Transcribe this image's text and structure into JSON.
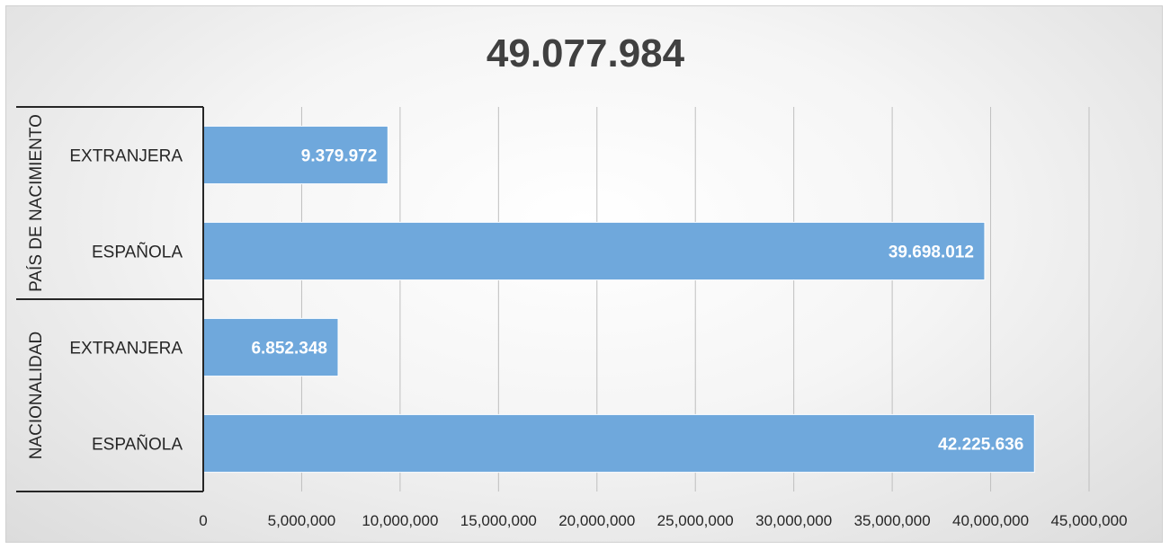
{
  "chart_data": {
    "type": "bar",
    "orientation": "horizontal",
    "title": "49.077.984",
    "groups": [
      {
        "name": "PAÍS DE NACIMIENTO",
        "categories": [
          "EXTRANJERA",
          "ESPAÑOLA"
        ]
      },
      {
        "name": "NACIONALIDAD",
        "categories": [
          "EXTRANJERA",
          "ESPAÑOLA"
        ]
      }
    ],
    "categories": [
      "EXTRANJERA",
      "ESPAÑOLA",
      "EXTRANJERA",
      "ESPAÑOLA"
    ],
    "values": [
      9379972,
      39698012,
      6852348,
      42225636
    ],
    "data_labels": [
      "9.379.972",
      "39.698.012",
      "6.852.348",
      "42.225.636"
    ],
    "xlim": [
      0,
      45000000
    ],
    "x_ticks": [
      0,
      5000000,
      10000000,
      15000000,
      20000000,
      25000000,
      30000000,
      35000000,
      40000000,
      45000000
    ],
    "x_tick_labels": [
      "0",
      "5,000,000",
      "10,000,000",
      "15,000,000",
      "20,000,000",
      "25,000,000",
      "30,000,000",
      "35,000,000",
      "40,000,000",
      "45,000,000"
    ],
    "grid": true,
    "legend": "none",
    "bar_color": "#6fa8dc"
  }
}
